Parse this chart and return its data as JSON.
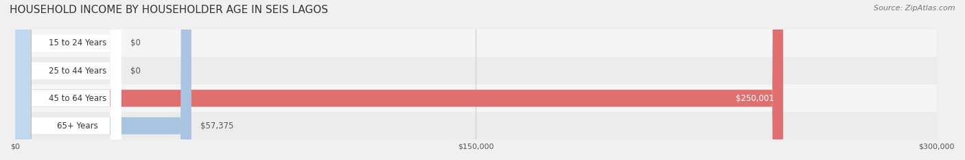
{
  "title": "HOUSEHOLD INCOME BY HOUSEHOLDER AGE IN SEIS LAGOS",
  "source": "Source: ZipAtlas.com",
  "categories": [
    "15 to 24 Years",
    "25 to 44 Years",
    "45 to 64 Years",
    "65+ Years"
  ],
  "values": [
    0,
    0,
    250001,
    57375
  ],
  "bar_colors": [
    "#f4a0aa",
    "#f5c990",
    "#e07070",
    "#a8c4e0"
  ],
  "label_colors": [
    "#555555",
    "#555555",
    "#ffffff",
    "#555555"
  ],
  "label_bg_colors": [
    "#f9d0d5",
    "#fbe5c0",
    "#cc5555",
    "#c0d8f0"
  ],
  "value_labels": [
    "$0",
    "$0",
    "$250,001",
    "$57,375"
  ],
  "xlim": [
    0,
    300000
  ],
  "xtick_values": [
    0,
    150000,
    300000
  ],
  "xtick_labels": [
    "$0",
    "$150,000",
    "$300,000"
  ],
  "bar_height": 0.62,
  "row_bg_colors": [
    "#f5f5f5",
    "#ececec",
    "#f5f5f5",
    "#ececec"
  ],
  "background_color": "#f0f0f0",
  "figsize": [
    14.06,
    2.33
  ],
  "dpi": 100
}
